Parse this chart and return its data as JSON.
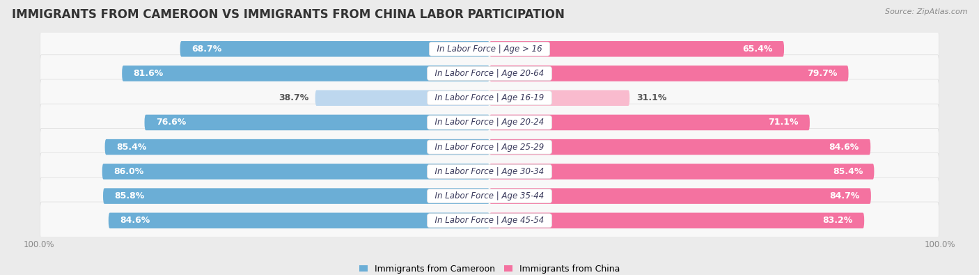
{
  "title": "IMMIGRANTS FROM CAMEROON VS IMMIGRANTS FROM CHINA LABOR PARTICIPATION",
  "source": "Source: ZipAtlas.com",
  "categories": [
    "In Labor Force | Age > 16",
    "In Labor Force | Age 20-64",
    "In Labor Force | Age 16-19",
    "In Labor Force | Age 20-24",
    "In Labor Force | Age 25-29",
    "In Labor Force | Age 30-34",
    "In Labor Force | Age 35-44",
    "In Labor Force | Age 45-54"
  ],
  "cameroon_values": [
    68.7,
    81.6,
    38.7,
    76.6,
    85.4,
    86.0,
    85.8,
    84.6
  ],
  "china_values": [
    65.4,
    79.7,
    31.1,
    71.1,
    84.6,
    85.4,
    84.7,
    83.2
  ],
  "cameroon_color": "#6BAED6",
  "cameroon_color_light": "#BDD7EE",
  "china_color": "#F472A0",
  "china_color_light": "#F9BBCE",
  "bar_height": 0.62,
  "max_value": 100.0,
  "bg_color": "#EBEBEB",
  "row_bg_color": "#F8F8F8",
  "row_border_color": "#DDDDDD",
  "label_color_white": "#FFFFFF",
  "label_color_dark": "#555555",
  "title_fontsize": 12,
  "label_fontsize": 9,
  "category_fontsize": 8.5,
  "legend_fontsize": 9,
  "axis_label_fontsize": 8.5
}
